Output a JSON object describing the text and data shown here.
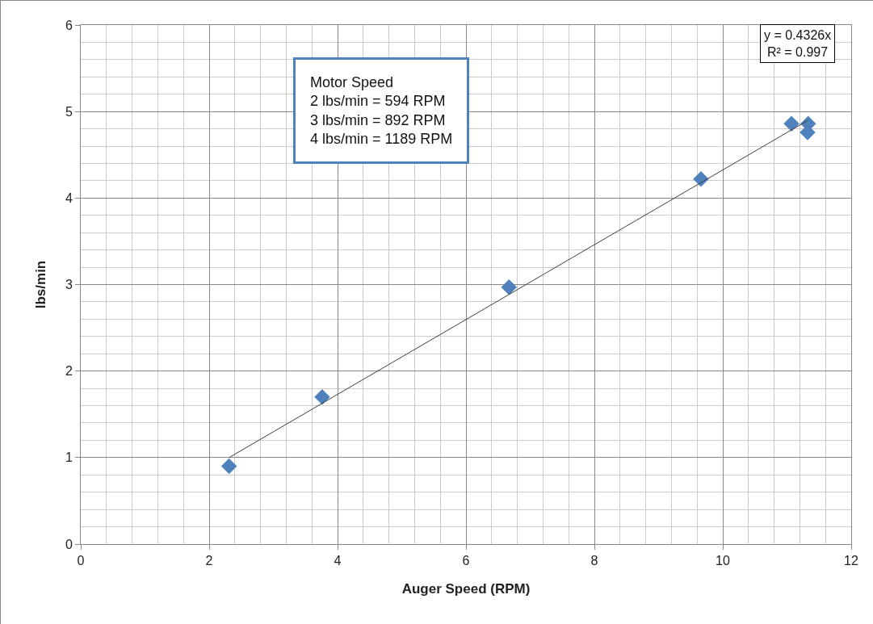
{
  "chart_data": {
    "type": "scatter",
    "xlabel": "Auger Speed (RPM)",
    "ylabel": "lbs/min",
    "x": [
      2.31,
      3.76,
      6.67,
      9.66,
      11.07,
      11.33,
      11.32
    ],
    "series": [
      {
        "color": "#4f81bd",
        "values": [
          0.9,
          1.7,
          2.97,
          4.22,
          4.86,
          4.86,
          4.76
        ],
        "marker": "diamond"
      },
      {
        "type": "line",
        "color": "#404040",
        "x": [
          2.31,
          11.33
        ],
        "values": [
          1.0,
          4.9
        ],
        "marker": "none",
        "line_style": "solid"
      }
    ],
    "annotations": [
      "y = 0.4326x\nR² = 0.997",
      "Motor Speed\n2 lbs/min = 594 RPM\n3 lbs/min = 892 RPM\n4 lbs/min = 1189 RPM"
    ],
    "xlim": [
      0,
      12
    ],
    "ylim": [
      0,
      6
    ],
    "xticks": [
      0,
      2,
      4,
      6,
      8,
      10,
      12
    ],
    "yticks": [
      0,
      1,
      2,
      3,
      4,
      5,
      6
    ],
    "grid": true
  }
}
